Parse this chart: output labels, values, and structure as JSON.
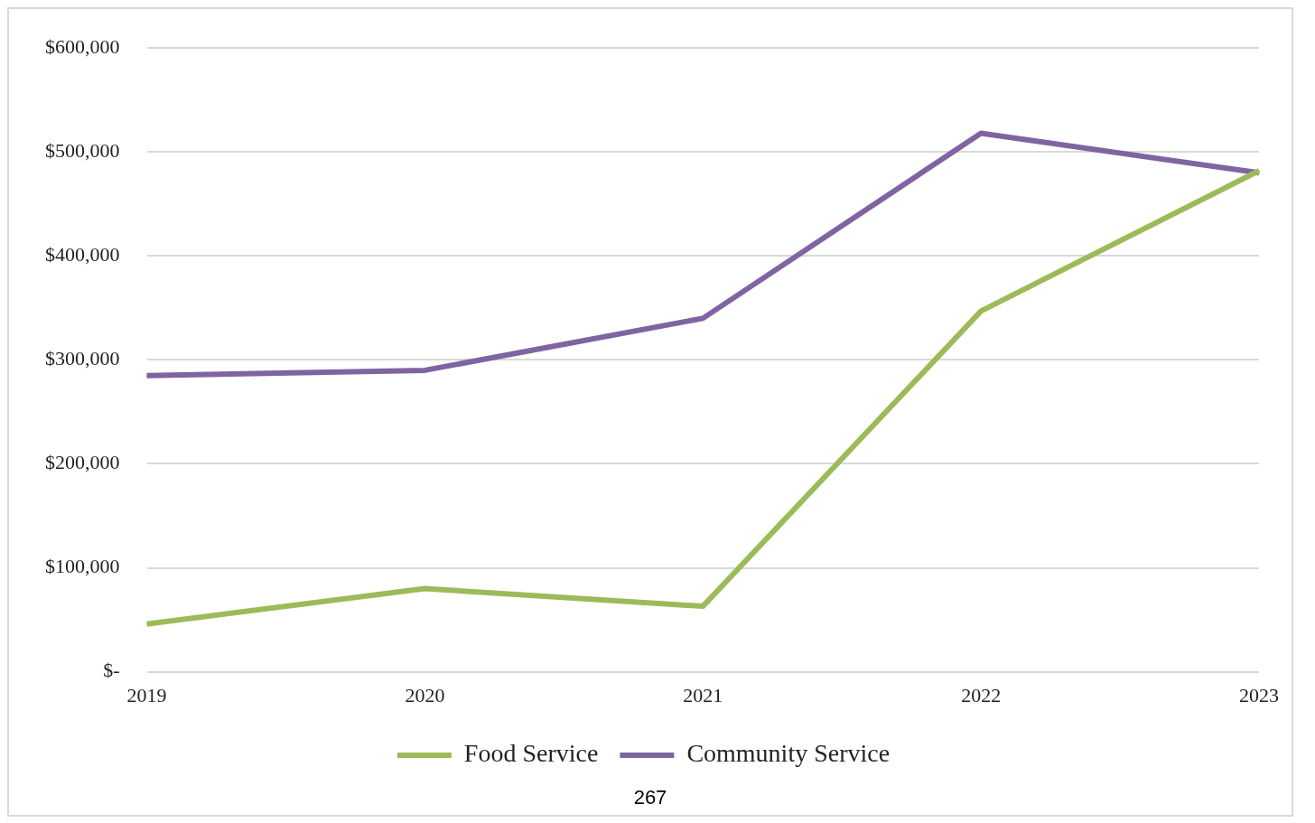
{
  "chart_data": {
    "type": "line",
    "categories": [
      "2019",
      "2020",
      "2021",
      "2022",
      "2023"
    ],
    "series": [
      {
        "name": "Food Service",
        "color": "#9bbb59",
        "values": [
          46000,
          80000,
          63000,
          347000,
          482000
        ]
      },
      {
        "name": "Community Service",
        "color": "#8064a2",
        "values": [
          285000,
          290000,
          340000,
          518000,
          480000
        ]
      }
    ],
    "ylim": [
      0,
      600000
    ],
    "yticks": [
      {
        "value": 0,
        "label": "$-"
      },
      {
        "value": 100000,
        "label": "$100,000"
      },
      {
        "value": 200000,
        "label": "$200,000"
      },
      {
        "value": 300000,
        "label": "$300,000"
      },
      {
        "value": 400000,
        "label": "$400,000"
      },
      {
        "value": 500000,
        "label": "$500,000"
      },
      {
        "value": 600000,
        "label": "$600,000"
      }
    ],
    "grid": "y",
    "legend": "bottom",
    "marker": "none",
    "line_style": "solid",
    "annotations": [
      "267"
    ]
  }
}
